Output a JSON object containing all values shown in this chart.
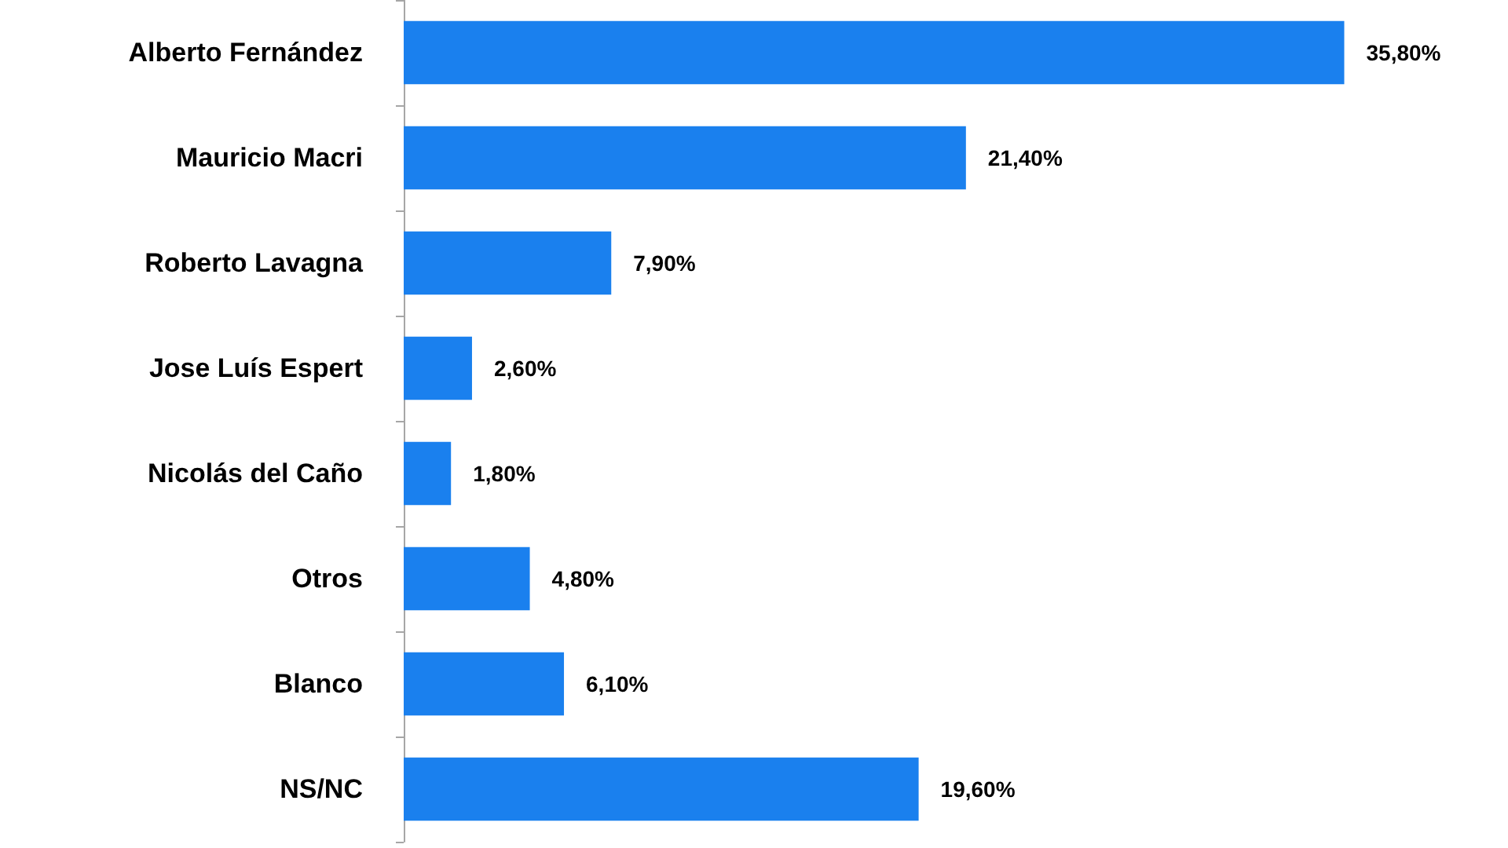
{
  "chart_data": {
    "type": "bar",
    "orientation": "horizontal",
    "categories": [
      "Alberto Fernández",
      "Mauricio Macri",
      "Roberto Lavagna",
      "Jose Luís Espert",
      "Nicolás del Caño",
      "Otros",
      "Blanco",
      "NS/NC"
    ],
    "values": [
      35.8,
      21.4,
      7.9,
      2.6,
      1.8,
      4.8,
      6.1,
      19.6
    ],
    "value_labels": [
      "35,80%",
      "21,40%",
      "7,90%",
      "2,60%",
      "1,80%",
      "4,80%",
      "6,10%",
      "19,60%"
    ],
    "color": "#1a80ee",
    "tick_labels": "y"
  }
}
